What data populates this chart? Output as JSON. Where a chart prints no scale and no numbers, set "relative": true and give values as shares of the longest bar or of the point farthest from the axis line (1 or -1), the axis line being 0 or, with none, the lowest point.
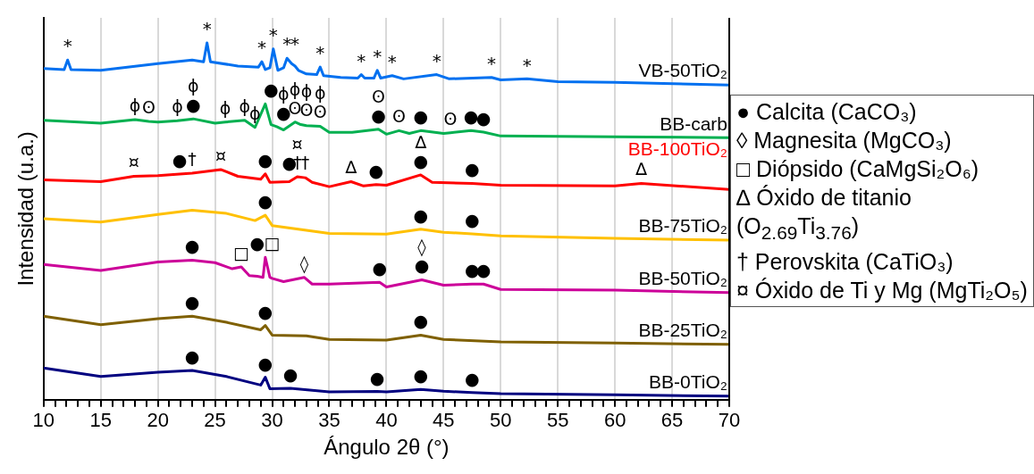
{
  "chart_data": {
    "type": "line",
    "relative": true,
    "xlabel": "Ángulo 2θ (°)",
    "ylabel": "Intensidad (u.a.)",
    "xlim": [
      10,
      70
    ],
    "xticks": [
      10,
      {
        "value": 11,
        "label": null
      },
      {
        "value": 12,
        "label": null
      },
      {
        "value": 13,
        "label": null
      },
      {
        "value": 14,
        "label": null
      },
      15,
      {
        "value": 16,
        "label": null
      },
      {
        "value": 17,
        "label": null
      },
      {
        "value": 18,
        "label": null
      },
      {
        "value": 19,
        "label": null
      },
      20,
      {
        "value": 21,
        "label": null
      },
      {
        "value": 22,
        "label": null
      },
      {
        "value": 23,
        "label": null
      },
      {
        "value": 24,
        "label": null
      },
      25,
      {
        "value": 26,
        "label": null
      },
      {
        "value": 27,
        "label": null
      },
      {
        "value": 28,
        "label": null
      },
      {
        "value": 29,
        "label": null
      },
      30,
      {
        "value": 31,
        "label": null
      },
      {
        "value": 32,
        "label": null
      },
      {
        "value": 33,
        "label": null
      },
      {
        "value": 34,
        "label": null
      },
      35,
      {
        "value": 36,
        "label": null
      },
      {
        "value": 37,
        "label": null
      },
      {
        "value": 38,
        "label": null
      },
      {
        "value": 39,
        "label": null
      },
      40,
      {
        "value": 41,
        "label": null
      },
      {
        "value": 42,
        "label": null
      },
      {
        "value": 43,
        "label": null
      },
      {
        "value": 44,
        "label": null
      },
      45,
      {
        "value": 46,
        "label": null
      },
      {
        "value": 47,
        "label": null
      },
      {
        "value": 48,
        "label": null
      },
      {
        "value": 49,
        "label": null
      },
      50,
      {
        "value": 51,
        "label": null
      },
      {
        "value": 52,
        "label": null
      },
      {
        "value": 53,
        "label": null
      },
      {
        "value": 54,
        "label": null
      },
      55,
      {
        "value": 56,
        "label": null
      },
      {
        "value": 57,
        "label": null
      },
      {
        "value": 58,
        "label": null
      },
      {
        "value": 59,
        "label": null
      },
      60,
      {
        "value": 61,
        "label": null
      },
      {
        "value": 62,
        "label": null
      },
      {
        "value": 63,
        "label": null
      },
      {
        "value": 64,
        "label": null
      },
      65,
      {
        "value": 66,
        "label": null
      },
      {
        "value": 67,
        "label": null
      },
      {
        "value": 68,
        "label": null
      },
      {
        "value": 69,
        "label": null
      },
      70
    ],
    "grid": "x",
    "legend": false,
    "series": [
      {
        "name": "VB-50TiO₂",
        "color": "#0070f0",
        "x": [
          10,
          11.8,
          12.1,
          12.4,
          15,
          20,
          23,
          24.0,
          24.3,
          24.6,
          27,
          28.8,
          29.1,
          29.4,
          29.8,
          30.1,
          30.5,
          31.0,
          31.3,
          31.7,
          32,
          32.3,
          33,
          33.9,
          34.2,
          34.5,
          36,
          37.5,
          37.8,
          38.1,
          38.9,
          39.2,
          39.5,
          40.5,
          41.5,
          44.4,
          45.5,
          49.2,
          50,
          52.3,
          55,
          60,
          70
        ],
        "values": [
          0.928,
          0.925,
          0.952,
          0.925,
          0.923,
          0.942,
          0.952,
          0.947,
          1.0,
          0.947,
          0.935,
          0.932,
          0.947,
          0.925,
          0.93,
          0.983,
          0.923,
          0.93,
          0.957,
          0.942,
          0.935,
          0.923,
          0.913,
          0.911,
          0.932,
          0.908,
          0.903,
          0.901,
          0.911,
          0.901,
          0.901,
          0.923,
          0.901,
          0.908,
          0.899,
          0.911,
          0.899,
          0.903,
          0.896,
          0.899,
          0.891,
          0.889,
          0.882
        ]
      },
      {
        "name": "BB-carb",
        "color": "#00b050",
        "x": [
          10,
          15,
          18,
          19.2,
          20,
          21.7,
          23.1,
          25,
          25.9,
          27.6,
          28.5,
          29.4,
          29.9,
          30.4,
          31,
          32,
          32.5,
          33,
          34.2,
          35,
          37,
          39.3,
          40,
          41.1,
          42,
          43,
          45,
          45.6,
          47.4,
          48.5,
          50,
          60,
          70
        ],
        "values": [
          0.783,
          0.775,
          0.785,
          0.78,
          0.778,
          0.782,
          0.787,
          0.775,
          0.778,
          0.783,
          0.763,
          0.829,
          0.771,
          0.765,
          0.756,
          0.778,
          0.771,
          0.768,
          0.766,
          0.749,
          0.749,
          0.758,
          0.744,
          0.754,
          0.746,
          0.754,
          0.746,
          0.748,
          0.754,
          0.75,
          0.739,
          0.737,
          0.734
        ]
      },
      {
        "name": "BB-100TiO₂",
        "color": "#ff0000",
        "x": [
          10,
          15,
          17.9,
          20,
          21.9,
          23,
          25.5,
          27,
          29,
          29.4,
          29.8,
          31.5,
          32.2,
          32.9,
          33.5,
          35,
          36.9,
          38,
          39.1,
          40,
          43,
          44,
          47.5,
          50,
          60,
          62.3,
          70
        ],
        "values": [
          0.616,
          0.611,
          0.626,
          0.628,
          0.632,
          0.635,
          0.645,
          0.626,
          0.618,
          0.633,
          0.609,
          0.611,
          0.625,
          0.622,
          0.609,
          0.597,
          0.611,
          0.599,
          0.603,
          0.601,
          0.63,
          0.609,
          0.606,
          0.601,
          0.599,
          0.606,
          0.589
        ]
      },
      {
        "name": "BB-75TiO₂",
        "color": "#ffc000",
        "x": [
          10,
          15,
          20,
          23,
          26,
          28.5,
          29.4,
          30,
          35,
          40,
          43,
          45,
          47.5,
          50,
          60,
          70
        ],
        "values": [
          0.507,
          0.498,
          0.519,
          0.531,
          0.522,
          0.502,
          0.517,
          0.488,
          0.466,
          0.464,
          0.478,
          0.469,
          0.465,
          0.459,
          0.452,
          0.447
        ]
      },
      {
        "name": "BB-50TiO₂",
        "color": "#cc0099",
        "x": [
          10,
          15,
          20,
          23,
          25,
          26.5,
          27.3,
          28,
          28.7,
          29.2,
          29.4,
          29.8,
          30.0,
          31,
          32.8,
          33.5,
          35,
          39.4,
          40,
          43.1,
          45,
          47.5,
          48.5,
          50,
          60,
          70
        ],
        "values": [
          0.379,
          0.362,
          0.386,
          0.391,
          0.384,
          0.367,
          0.372,
          0.348,
          0.346,
          0.343,
          0.399,
          0.343,
          0.34,
          0.331,
          0.343,
          0.324,
          0.324,
          0.329,
          0.316,
          0.336,
          0.321,
          0.324,
          0.324,
          0.309,
          0.307,
          0.3
        ]
      },
      {
        "name": "BB-25TiO₂",
        "color": "#7f6000",
        "x": [
          10,
          15,
          20,
          23,
          26,
          29,
          29.4,
          30,
          33,
          35,
          40,
          43,
          45,
          50,
          60,
          70
        ],
        "values": [
          0.234,
          0.21,
          0.227,
          0.234,
          0.217,
          0.196,
          0.208,
          0.181,
          0.179,
          0.169,
          0.167,
          0.181,
          0.169,
          0.162,
          0.159,
          0.155
        ]
      },
      {
        "name": "BB-0TiO₂",
        "color": "#000080",
        "x": [
          10,
          15,
          20,
          23,
          26,
          29,
          29.4,
          29.8,
          31.6,
          35,
          39.2,
          40,
          43,
          45,
          47.5,
          50,
          60,
          70
        ],
        "values": [
          0.089,
          0.065,
          0.077,
          0.082,
          0.065,
          0.041,
          0.063,
          0.031,
          0.032,
          0.022,
          0.023,
          0.022,
          0.029,
          0.024,
          0.02,
          0.017,
          0.014,
          0.01
        ]
      }
    ],
    "annotations": [
      "● Calcita (CaCO₃)",
      "◊ Magnesita (MgCO₃)",
      "□ Diópsido (CaMgSi₂O₆)",
      "∆ Óxido de titanio (O$_{2.69}$Ti$_{3.76}$)",
      "† Perovskita (CaTiO₃)",
      "¤ Óxido de Ti y Mg (MgTi₂O₅)",
      {
        "text": "*",
        "x": 12.1,
        "y": 0.952
      },
      {
        "text": "*",
        "x": 24.3,
        "y": 1.0
      },
      {
        "text": "*",
        "x": 29.1,
        "y": 0.947
      },
      {
        "text": "*",
        "x": 30.1,
        "y": 0.983
      },
      {
        "text": "*",
        "x": 31.3,
        "y": 0.957
      },
      {
        "text": "*",
        "x": 32,
        "y": 0.935
      },
      {
        "text": "*",
        "x": 34.2,
        "y": 0.932
      },
      {
        "text": "*",
        "x": 37.8,
        "y": 0.911
      },
      {
        "text": "*",
        "x": 39.2,
        "y": 0.923
      },
      {
        "text": "*",
        "x": 40.5,
        "y": 0.908
      },
      {
        "text": "*",
        "x": 44.4,
        "y": 0.911
      },
      {
        "text": "*",
        "x": 49.2,
        "y": 0.903
      },
      {
        "text": "*",
        "x": 52.3,
        "y": 0.899
      },
      {
        "text": "ϕ",
        "x": 18,
        "y": 0.785
      },
      {
        "text": "ʘ",
        "x": 19.2,
        "y": 0.78
      },
      {
        "text": "ϕ",
        "x": 21.7,
        "y": 0.782
      },
      {
        "text": "●",
        "x": 23.1,
        "y": 0.787
      },
      {
        "text": "ϕ",
        "x": 23.1,
        "y": 0.787
      },
      {
        "text": "ϕ",
        "x": 25.9,
        "y": 0.778
      },
      {
        "text": "ϕ",
        "x": 27.6,
        "y": 0.783
      },
      {
        "text": "ϕ",
        "x": 28.5,
        "y": 0.763
      },
      {
        "text": "●",
        "x": 29.9,
        "y": 0.771
      },
      {
        "text": "●",
        "x": 31,
        "y": 0.756
      },
      {
        "text": "ϕ",
        "x": 31,
        "y": 0.756
      },
      {
        "text": "ʘ",
        "x": 32,
        "y": 0.778
      },
      {
        "text": "ϕ",
        "x": 32,
        "y": 0.778
      },
      {
        "text": "ʘ",
        "x": 33,
        "y": 0.768
      },
      {
        "text": "ϕ",
        "x": 33,
        "y": 0.768
      },
      {
        "text": "ʘ",
        "x": 34.2,
        "y": 0.766
      },
      {
        "text": "ϕ",
        "x": 34.2,
        "y": 0.766
      },
      {
        "text": "●",
        "x": 39.3,
        "y": 0.758
      },
      {
        "text": "ʘ",
        "x": 39.3,
        "y": 0.758
      },
      {
        "text": "ʘ",
        "x": 41.1,
        "y": 0.754
      },
      {
        "text": "●",
        "x": 43,
        "y": 0.754
      },
      {
        "text": "ʘ",
        "x": 45.6,
        "y": 0.748
      },
      {
        "text": "●",
        "x": 47.4,
        "y": 0.754
      },
      {
        "text": "●",
        "x": 48.5,
        "y": 0.75
      },
      {
        "text": "¤",
        "x": 17.9,
        "y": 0.626
      },
      {
        "text": "●",
        "x": 21.9,
        "y": 0.632
      },
      {
        "text": "†",
        "x": 23,
        "y": 0.635
      },
      {
        "text": "¤",
        "x": 25.5,
        "y": 0.645
      },
      {
        "text": "●",
        "x": 29.4,
        "y": 0.633
      },
      {
        "text": "●",
        "x": 31.5,
        "y": 0.611
      },
      {
        "text": "†",
        "x": 32.2,
        "y": 0.625
      },
      {
        "text": "¤",
        "x": 32.2,
        "y": 0.625
      },
      {
        "text": "†",
        "x": 32.9,
        "y": 0.622
      },
      {
        "text": "∆",
        "x": 36.9,
        "y": 0.611
      },
      {
        "text": "●",
        "x": 39.1,
        "y": 0.603
      },
      {
        "text": "●",
        "x": 43,
        "y": 0.63
      },
      {
        "text": "∆",
        "x": 43,
        "y": 0.63
      },
      {
        "text": "●",
        "x": 47.5,
        "y": 0.606
      },
      {
        "text": "∆",
        "x": 62.3,
        "y": 0.606
      },
      {
        "text": "●",
        "x": 29.4,
        "y": 0.517
      },
      {
        "text": "●",
        "x": 43,
        "y": 0.478
      },
      {
        "text": "●",
        "x": 47.5,
        "y": 0.465
      },
      {
        "text": "●",
        "x": 23,
        "y": 0.391
      },
      {
        "text": "□",
        "x": 27.3,
        "y": 0.372
      },
      {
        "text": "●",
        "x": 28.7,
        "y": 0.346
      },
      {
        "text": "□",
        "x": 30.0,
        "y": 0.34
      },
      {
        "text": "◊",
        "x": 32.8,
        "y": 0.343
      },
      {
        "text": "●",
        "x": 39.4,
        "y": 0.329
      },
      {
        "text": "●",
        "x": 43.1,
        "y": 0.336
      },
      {
        "text": "◊",
        "x": 43.1,
        "y": 0.336
      },
      {
        "text": "●",
        "x": 47.5,
        "y": 0.324
      },
      {
        "text": "●",
        "x": 48.5,
        "y": 0.324
      },
      {
        "text": "●",
        "x": 23,
        "y": 0.234
      },
      {
        "text": "●",
        "x": 29.4,
        "y": 0.208
      },
      {
        "text": "●",
        "x": 43,
        "y": 0.181
      },
      {
        "text": "●",
        "x": 23,
        "y": 0.082
      },
      {
        "text": "●",
        "x": 29.4,
        "y": 0.063
      },
      {
        "text": "●",
        "x": 31.6,
        "y": 0.032
      },
      {
        "text": "●",
        "x": 39.2,
        "y": 0.023
      },
      {
        "text": "●",
        "x": 43,
        "y": 0.029
      },
      {
        "text": "●",
        "x": 47.5,
        "y": 0.02
      }
    ]
  }
}
